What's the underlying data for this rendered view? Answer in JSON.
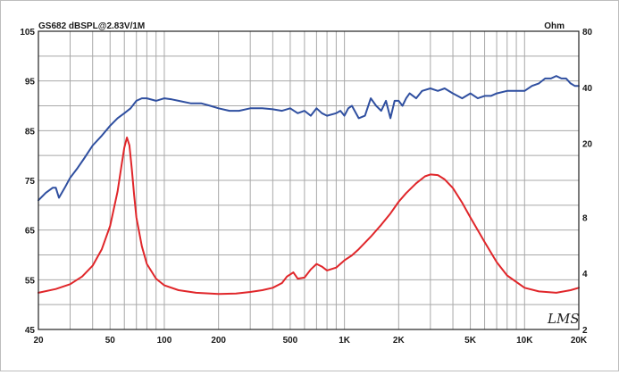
{
  "chart_data": {
    "type": "line",
    "title": "GS682 dBSPL@2.83V/1M",
    "right_axis_title": "Ohm",
    "watermark": "LMS",
    "x_scale": "log",
    "xlim": [
      20,
      20000
    ],
    "x_ticks": [
      20,
      50,
      100,
      200,
      500,
      1000,
      2000,
      5000,
      10000,
      20000
    ],
    "x_tick_labels": [
      "20",
      "50",
      "100",
      "200",
      "500",
      "1K",
      "2K",
      "5K",
      "10K",
      "20K"
    ],
    "ylim": [
      45,
      105
    ],
    "y_ticks": [
      45,
      55,
      65,
      75,
      85,
      95,
      105
    ],
    "y_tick_labels": [
      "45",
      "55",
      "65",
      "75",
      "85",
      "95",
      "105"
    ],
    "y2_scale": "log",
    "y2lim": [
      2,
      80
    ],
    "y2_ticks": [
      2,
      4,
      8,
      20,
      40,
      80
    ],
    "y2_tick_labels": [
      "2",
      "4",
      "8",
      "20",
      "40",
      "80"
    ],
    "grid": true,
    "colors": {
      "spl": "#2f4fa0",
      "impedance": "#e0262a",
      "grid": "#a8a8a8",
      "axis": "#222222"
    },
    "series": [
      {
        "axis": "left",
        "x": [
          20,
          22,
          24,
          25,
          26,
          28,
          30,
          33,
          36,
          40,
          45,
          50,
          55,
          60,
          65,
          70,
          75,
          80,
          90,
          100,
          110,
          120,
          140,
          160,
          180,
          200,
          230,
          260,
          300,
          350,
          400,
          450,
          500,
          550,
          600,
          650,
          700,
          750,
          800,
          900,
          950,
          1000,
          1050,
          1100,
          1200,
          1300,
          1400,
          1500,
          1600,
          1700,
          1800,
          1900,
          2000,
          2100,
          2200,
          2300,
          2500,
          2700,
          3000,
          3300,
          3600,
          4000,
          4500,
          5000,
          5500,
          6000,
          6500,
          7000,
          8000,
          9000,
          10000,
          11000,
          12000,
          13000,
          14000,
          15000,
          16000,
          17000,
          18000,
          19000,
          20000
        ],
        "values": [
          71,
          72.5,
          73.5,
          73.5,
          71.5,
          73.5,
          75.5,
          77.5,
          79.5,
          82,
          84,
          86,
          87.5,
          88.5,
          89.5,
          91,
          91.5,
          91.5,
          91,
          91.5,
          91.3,
          91,
          90.5,
          90.5,
          90,
          89.5,
          89,
          89,
          89.5,
          89.5,
          89.3,
          89,
          89.5,
          88.5,
          89,
          88,
          89.5,
          88.5,
          88,
          88.5,
          89,
          88,
          89.5,
          90,
          87.5,
          88,
          91.5,
          90,
          89,
          91,
          87.5,
          91,
          91,
          90,
          91.5,
          92.5,
          91.5,
          93,
          93.5,
          93,
          93.5,
          92.5,
          91.5,
          92.5,
          91.5,
          92,
          92,
          92.5,
          93,
          93,
          93,
          94,
          94.5,
          95.5,
          95.5,
          96,
          95.5,
          95.5,
          94.5,
          94,
          94
        ]
      },
      {
        "axis": "right",
        "x": [
          20,
          25,
          30,
          35,
          40,
          45,
          50,
          55,
          58,
          60,
          62,
          64,
          66,
          68,
          70,
          75,
          80,
          90,
          100,
          120,
          150,
          200,
          250,
          300,
          350,
          400,
          450,
          480,
          520,
          550,
          600,
          650,
          700,
          750,
          800,
          900,
          1000,
          1100,
          1200,
          1400,
          1600,
          1800,
          2000,
          2200,
          2500,
          2800,
          3000,
          3300,
          3600,
          4000,
          4500,
          5000,
          6000,
          7000,
          8000,
          10000,
          12000,
          15000,
          18000,
          20000
        ],
        "values": [
          3.15,
          3.3,
          3.5,
          3.85,
          4.4,
          5.4,
          7.2,
          11,
          15.5,
          19,
          21.5,
          19.5,
          14.5,
          10.5,
          8,
          5.6,
          4.5,
          3.75,
          3.45,
          3.25,
          3.15,
          3.1,
          3.12,
          3.18,
          3.25,
          3.35,
          3.55,
          3.85,
          4.05,
          3.75,
          3.8,
          4.2,
          4.5,
          4.35,
          4.15,
          4.3,
          4.7,
          5.0,
          5.4,
          6.3,
          7.3,
          8.4,
          9.7,
          10.8,
          12.2,
          13.3,
          13.6,
          13.5,
          12.8,
          11.5,
          9.6,
          8.0,
          5.9,
          4.6,
          3.9,
          3.35,
          3.2,
          3.15,
          3.25,
          3.35
        ]
      }
    ]
  }
}
